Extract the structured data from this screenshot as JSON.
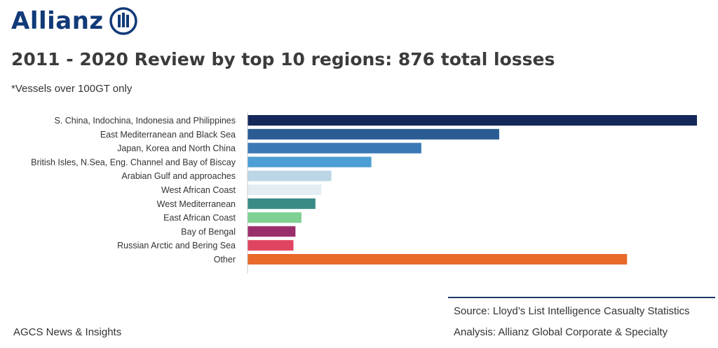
{
  "header": {
    "logo_text": "Allianz",
    "title": "2011 - 2020 Review by top 10 regions: 876 total losses",
    "subtitle": "*Vessels over 100GT only"
  },
  "footer": {
    "left": "AGCS News & Insights",
    "source": "Source: Lloyd’s List Intelligence Casualty Statistics",
    "analysis": "Analysis: Allianz Global Corporate & Specialty"
  },
  "colors": {
    "brand": "#113a78",
    "divider": "#1f3a6b"
  },
  "chart_data": {
    "type": "bar",
    "orientation": "horizontal",
    "categories": [
      "S. China, Indochina, Indonesia and Philippines",
      "East Mediterranean and Black Sea",
      "Japan, Korea and North China",
      "British Isles, N.Sea, Eng. Channel and Bay of Biscay",
      "Arabian Gulf and approaches",
      "West African Coast",
      "West Mediterranean",
      "East African Coast",
      "Bay of Bengal",
      "Russian Arctic and Bering Sea",
      "Other"
    ],
    "values": [
      225,
      126,
      87,
      62,
      42,
      37,
      34,
      27,
      24,
      23,
      190
    ],
    "colors": [
      "#14295a",
      "#2a5b93",
      "#3a78b6",
      "#4c9fd4",
      "#bcd6e6",
      "#e2eef4",
      "#3a8a86",
      "#7ed192",
      "#9a2e6c",
      "#e0455f",
      "#e8692a"
    ],
    "xlim": [
      0,
      225
    ],
    "grid": false,
    "legend": "none"
  }
}
